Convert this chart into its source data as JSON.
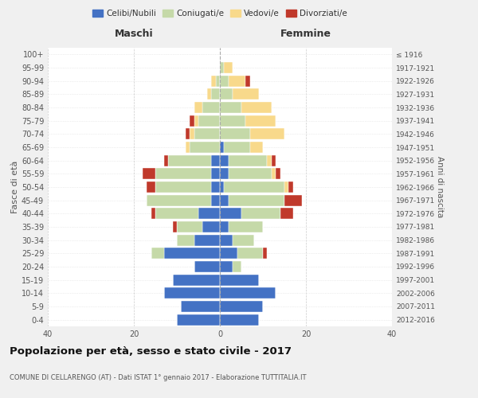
{
  "age_groups": [
    "0-4",
    "5-9",
    "10-14",
    "15-19",
    "20-24",
    "25-29",
    "30-34",
    "35-39",
    "40-44",
    "45-49",
    "50-54",
    "55-59",
    "60-64",
    "65-69",
    "70-74",
    "75-79",
    "80-84",
    "85-89",
    "90-94",
    "95-99",
    "100+"
  ],
  "birth_years": [
    "2012-2016",
    "2007-2011",
    "2002-2006",
    "1997-2001",
    "1992-1996",
    "1987-1991",
    "1982-1986",
    "1977-1981",
    "1972-1976",
    "1967-1971",
    "1962-1966",
    "1957-1961",
    "1952-1956",
    "1947-1951",
    "1942-1946",
    "1937-1941",
    "1932-1936",
    "1927-1931",
    "1922-1926",
    "1917-1921",
    "≤ 1916"
  ],
  "male": {
    "celibi": [
      10,
      9,
      13,
      11,
      6,
      13,
      6,
      4,
      5,
      2,
      2,
      2,
      2,
      0,
      0,
      0,
      0,
      0,
      0,
      0,
      0
    ],
    "coniugati": [
      0,
      0,
      0,
      0,
      0,
      3,
      4,
      6,
      10,
      15,
      13,
      13,
      10,
      7,
      6,
      5,
      4,
      2,
      1,
      0,
      0
    ],
    "vedovi": [
      0,
      0,
      0,
      0,
      0,
      0,
      0,
      0,
      0,
      0,
      0,
      0,
      0,
      1,
      1,
      1,
      2,
      1,
      1,
      0,
      0
    ],
    "divorziati": [
      0,
      0,
      0,
      0,
      0,
      0,
      0,
      1,
      1,
      0,
      2,
      3,
      1,
      0,
      1,
      1,
      0,
      0,
      0,
      0,
      0
    ]
  },
  "female": {
    "nubili": [
      9,
      10,
      13,
      9,
      3,
      4,
      3,
      2,
      5,
      2,
      1,
      2,
      2,
      1,
      0,
      0,
      0,
      0,
      0,
      0,
      0
    ],
    "coniugate": [
      0,
      0,
      0,
      0,
      2,
      6,
      5,
      8,
      9,
      13,
      14,
      10,
      9,
      6,
      7,
      6,
      5,
      3,
      2,
      1,
      0
    ],
    "vedove": [
      0,
      0,
      0,
      0,
      0,
      0,
      0,
      0,
      0,
      0,
      1,
      1,
      1,
      3,
      8,
      7,
      7,
      6,
      4,
      2,
      0
    ],
    "divorziate": [
      0,
      0,
      0,
      0,
      0,
      1,
      0,
      0,
      3,
      4,
      1,
      1,
      1,
      0,
      0,
      0,
      0,
      0,
      1,
      0,
      0
    ]
  },
  "colors": {
    "celibi": "#4472c4",
    "coniugati": "#c5d9a8",
    "vedovi": "#f8d98b",
    "divorziati": "#c0392b"
  },
  "title": "Popolazione per età, sesso e stato civile - 2017",
  "subtitle": "COMUNE DI CELLARENGO (AT) - Dati ISTAT 1° gennaio 2017 - Elaborazione TUTTITALIA.IT",
  "ylabel_left": "Fasce di età",
  "ylabel_right": "Anni di nascita",
  "xlabel_left": "Maschi",
  "xlabel_right": "Femmine",
  "xlim": 40,
  "legend_labels": [
    "Celibi/Nubili",
    "Coniugati/e",
    "Vedovi/e",
    "Divorziati/e"
  ],
  "bg_color": "#f0f0f0",
  "plot_bg_color": "#ffffff"
}
